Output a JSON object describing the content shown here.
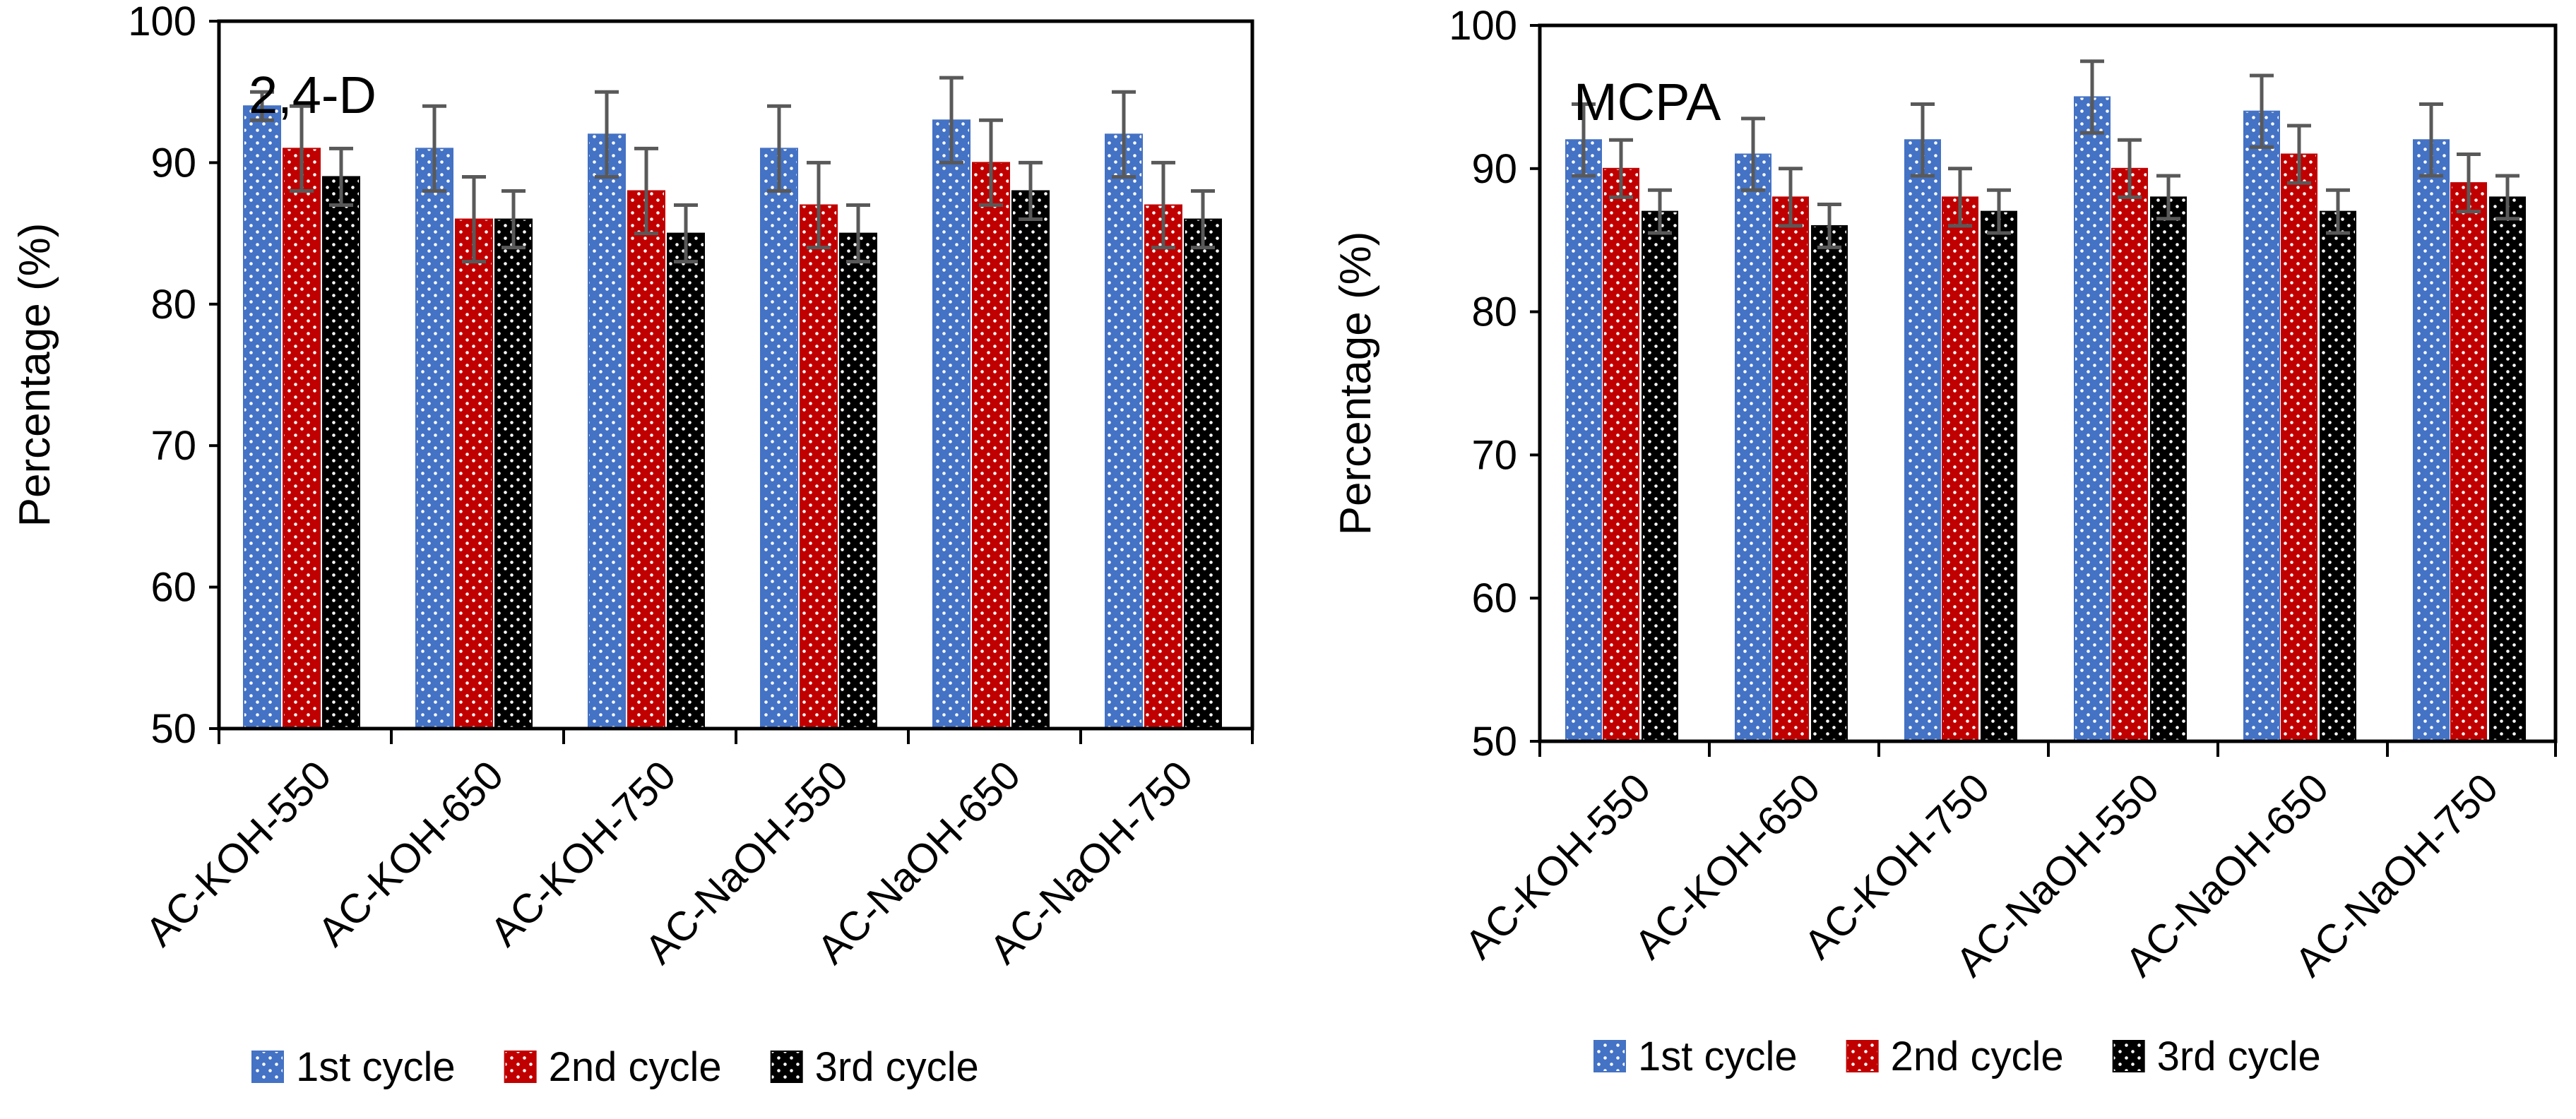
{
  "chart_data": [
    {
      "type": "bar",
      "title": "2,4-D",
      "xlabel": "",
      "ylabel": "Percentage (%)",
      "ylim": [
        50,
        100
      ],
      "yticks": [
        50,
        60,
        70,
        80,
        90,
        100
      ],
      "grid": false,
      "legend_position": "bottom",
      "categories": [
        "AC-KOH-550",
        "AC-KOH-650",
        "AC-KOH-750",
        "AC-NaOH-550",
        "AC-NaOH-650",
        "AC-NaOH-750"
      ],
      "series": [
        {
          "name": "1st cycle",
          "color": "#4472C4",
          "values": [
            94,
            91,
            92,
            91,
            93,
            92
          ],
          "errors": [
            1,
            3,
            3,
            3,
            3,
            3
          ]
        },
        {
          "name": "2nd cycle",
          "color": "#C00000",
          "values": [
            91,
            86,
            88,
            87,
            90,
            87
          ],
          "errors": [
            3,
            3,
            3,
            3,
            3,
            3
          ]
        },
        {
          "name": "3rd cycle",
          "color": "#000000",
          "values": [
            89,
            86,
            85,
            85,
            88,
            86
          ],
          "errors": [
            2,
            2,
            2,
            2,
            2,
            2
          ]
        }
      ]
    },
    {
      "type": "bar",
      "title": "MCPA",
      "xlabel": "",
      "ylabel": "Percentage (%)",
      "ylim": [
        50,
        100
      ],
      "yticks": [
        50,
        60,
        70,
        80,
        90,
        100
      ],
      "grid": false,
      "legend_position": "bottom",
      "categories": [
        "AC-KOH-550",
        "AC-KOH-650",
        "AC-KOH-750",
        "AC-NaOH-550",
        "AC-NaOH-650",
        "AC-NaOH-750"
      ],
      "series": [
        {
          "name": "1st cycle",
          "color": "#4472C4",
          "values": [
            92,
            91,
            92,
            95,
            94,
            92
          ],
          "errors": [
            2.5,
            2.5,
            2.5,
            2.5,
            2.5,
            2.5
          ]
        },
        {
          "name": "2nd cycle",
          "color": "#C00000",
          "values": [
            90,
            88,
            88,
            90,
            91,
            89
          ],
          "errors": [
            2,
            2,
            2,
            2,
            2,
            2
          ]
        },
        {
          "name": "3rd cycle",
          "color": "#000000",
          "values": [
            87,
            86,
            87,
            88,
            87,
            88
          ],
          "errors": [
            1.5,
            1.5,
            1.5,
            1.5,
            1.5,
            1.5
          ]
        }
      ]
    }
  ]
}
